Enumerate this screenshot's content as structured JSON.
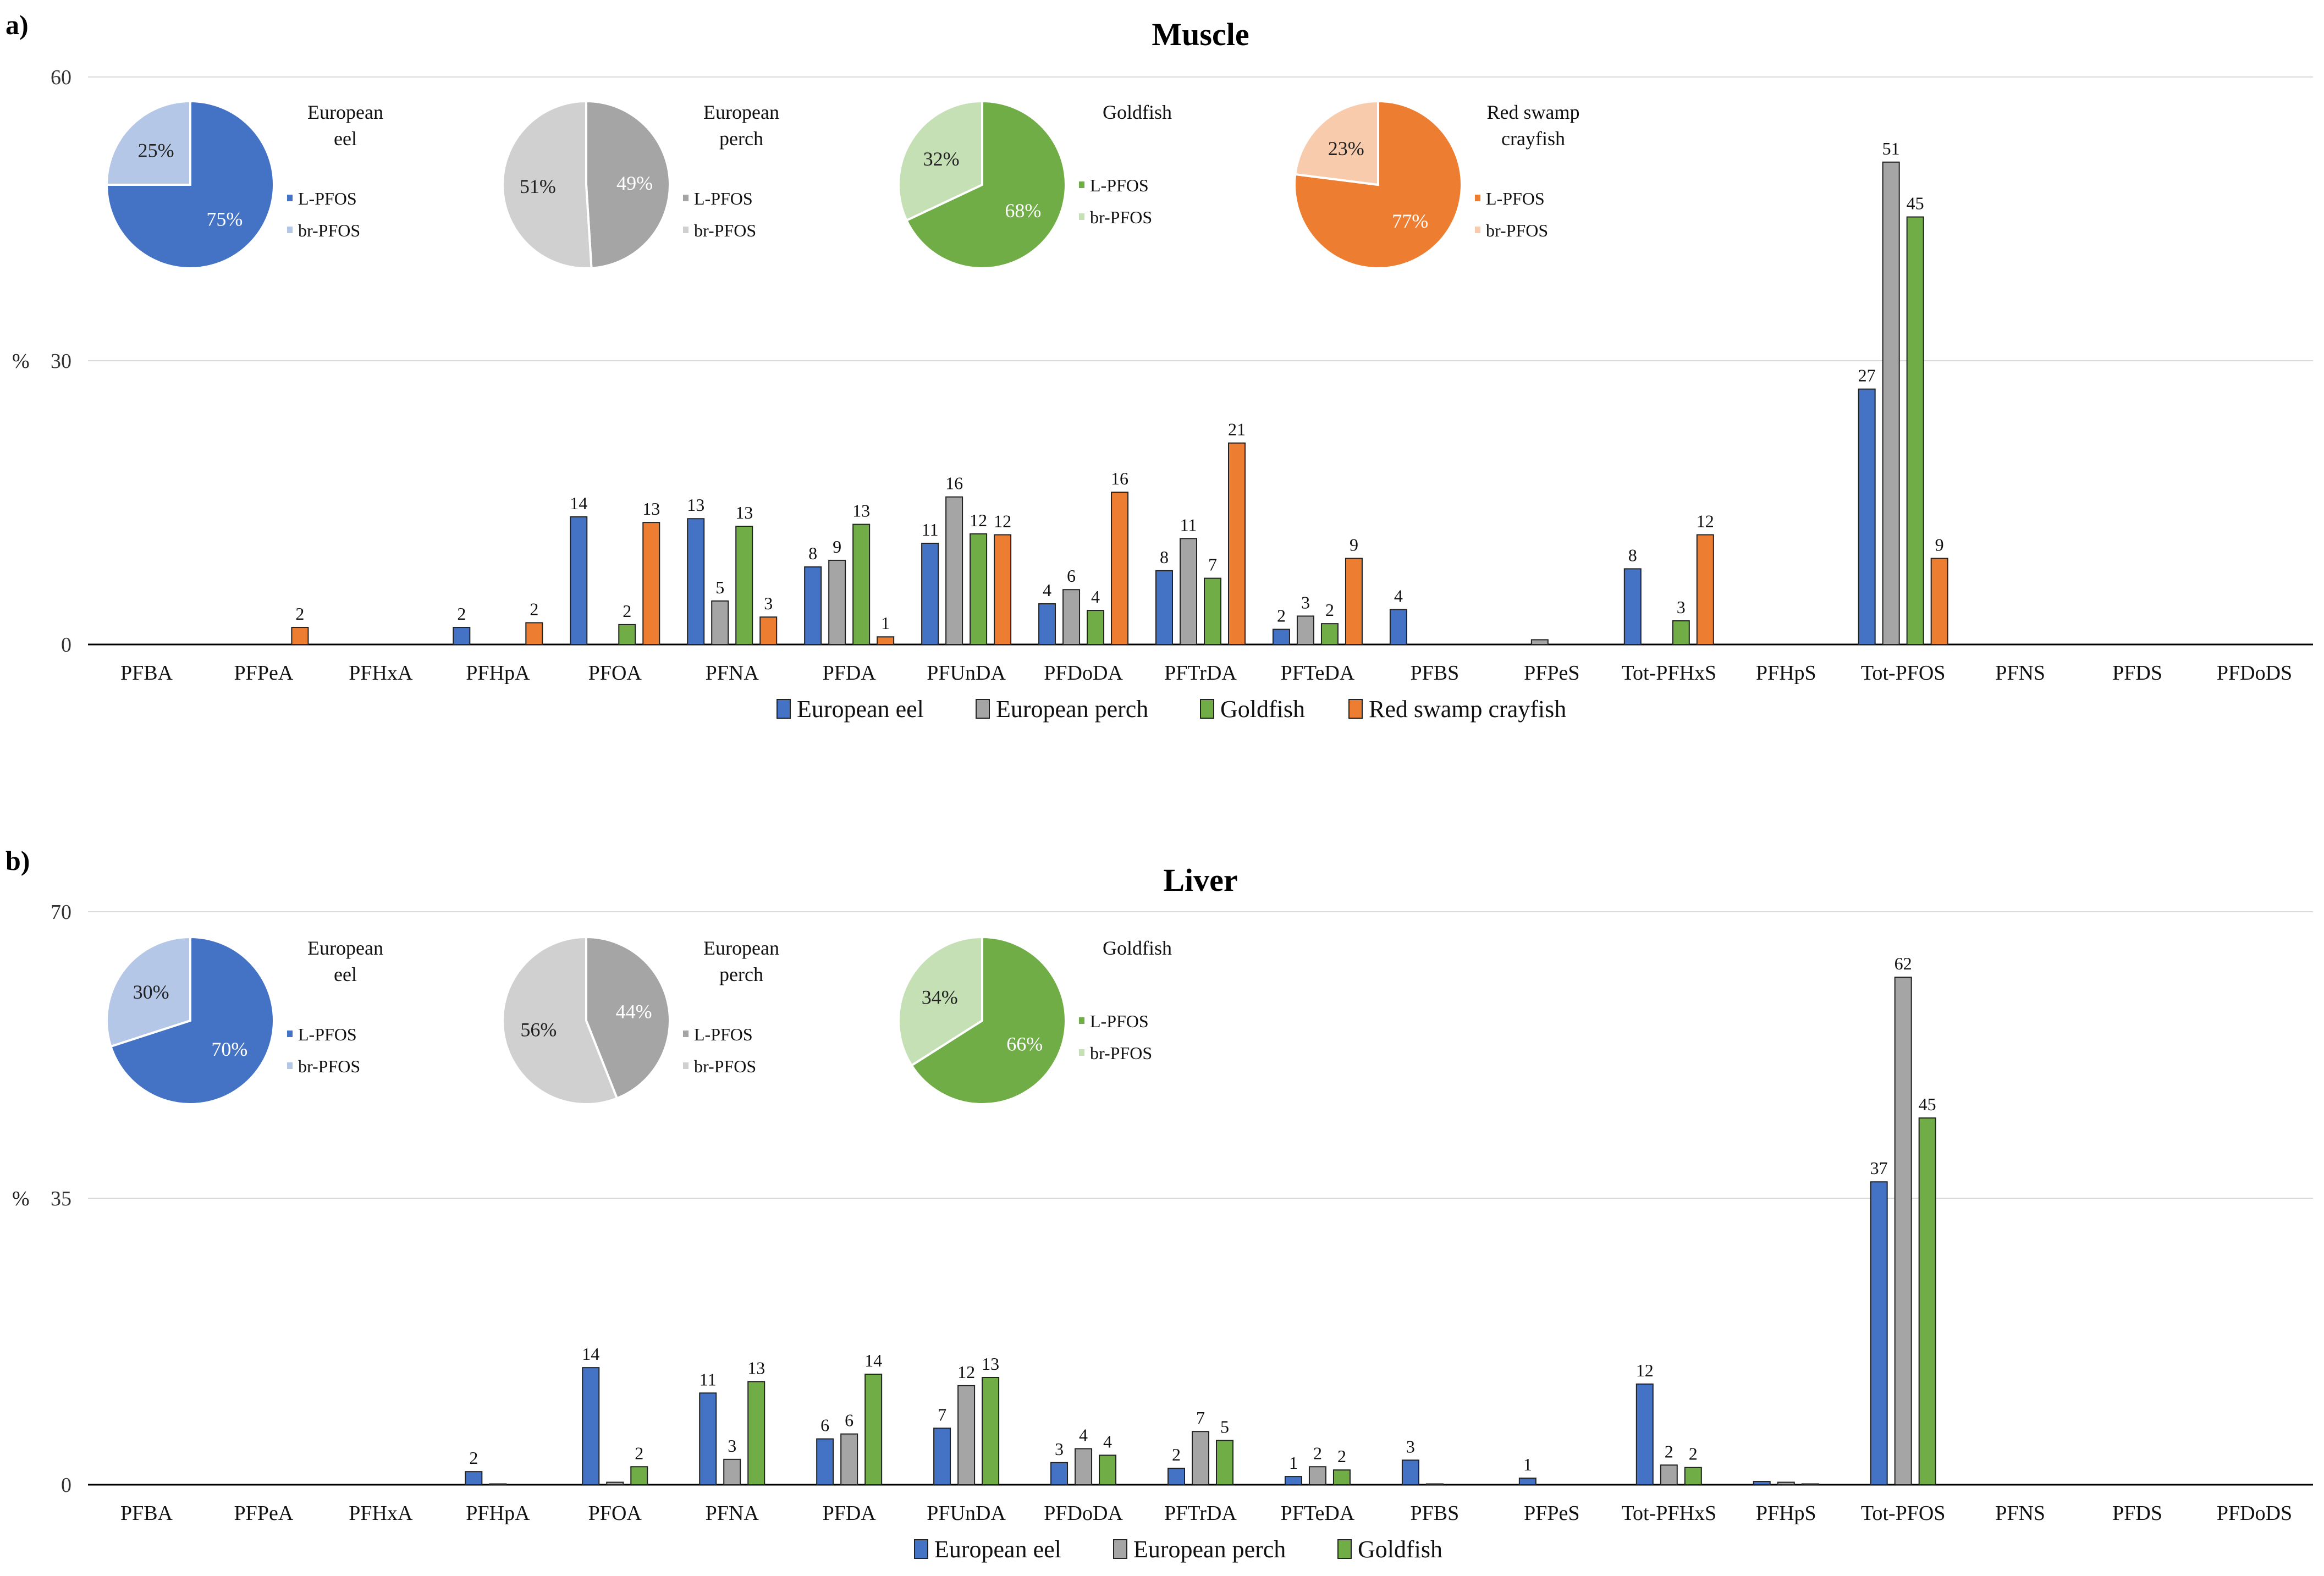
{
  "categories": [
    "PFBA",
    "PFPeA",
    "PFHxA",
    "PFHpA",
    "PFOA",
    "PFNA",
    "PFDA",
    "PFUnDA",
    "PFDoDA",
    "PFTrDA",
    "PFTeDA",
    "PFBS",
    "PFPeS",
    "Tot-PFHxS",
    "PFHpS",
    "Tot-PFOS",
    "PFNS",
    "PFDS",
    "PFDoDS"
  ],
  "pie_legend": {
    "linear": "L-PFOS",
    "branched": "br-PFOS"
  },
  "colors": {
    "European eel": "#4472C4",
    "European eel light": "#B4C7E7",
    "European perch": "#A5A5A5",
    "European perch light": "#D0D0D0",
    "Goldfish": "#70AD47",
    "Goldfish light": "#C5E0B4",
    "Red swamp crayfish": "#ED7D31",
    "Red swamp crayfish light": "#F8CBAD"
  },
  "chart_data": [
    {
      "panel": "a)",
      "type": "bar",
      "title": "Muscle",
      "ylabel": "%",
      "ylim": [
        0,
        60
      ],
      "yticks": [
        0,
        30,
        60
      ],
      "legend": [
        "European eel",
        "European perch",
        "Goldfish",
        "Red swamp crayfish"
      ],
      "series": [
        {
          "name": "European eel",
          "values": [
            0,
            0,
            0,
            1.8,
            13.5,
            13.3,
            8.2,
            10.7,
            4.3,
            7.8,
            1.6,
            3.7,
            0,
            8,
            0,
            27,
            0,
            0,
            0
          ],
          "labels": [
            null,
            null,
            null,
            "2",
            "14",
            "13",
            "8",
            "11",
            "4",
            "8",
            "2",
            "4",
            null,
            "8",
            null,
            "27",
            null,
            null,
            null
          ]
        },
        {
          "name": "European perch",
          "values": [
            0,
            0,
            0,
            0,
            0,
            4.6,
            8.9,
            15.6,
            5.8,
            11.2,
            3,
            0,
            0.5,
            0,
            0,
            51,
            0,
            0,
            0
          ],
          "labels": [
            null,
            null,
            null,
            null,
            null,
            "5",
            "9",
            "16",
            "6",
            "11",
            "3",
            null,
            null,
            null,
            null,
            "51",
            null,
            null,
            null
          ]
        },
        {
          "name": "Goldfish",
          "values": [
            0,
            0,
            0,
            0,
            2.1,
            12.5,
            12.7,
            11.7,
            3.6,
            7,
            2.2,
            0,
            0,
            2.5,
            0,
            45.2,
            0,
            0,
            0
          ],
          "labels": [
            null,
            null,
            null,
            null,
            "2",
            "13",
            "13",
            "12",
            "4",
            "7",
            "2",
            null,
            null,
            "3",
            null,
            "45",
            null,
            null,
            null
          ]
        },
        {
          "name": "Red swamp crayfish",
          "values": [
            0,
            1.8,
            0,
            2.3,
            12.9,
            2.9,
            0.8,
            11.6,
            16.1,
            21.3,
            9.1,
            0,
            0,
            11.6,
            0,
            9.1,
            0,
            0,
            0
          ],
          "labels": [
            null,
            "2",
            null,
            "2",
            "13",
            "3",
            "1",
            "12",
            "16",
            "21",
            "9",
            null,
            null,
            "12",
            null,
            "9",
            null,
            null,
            null
          ]
        }
      ],
      "pies": [
        {
          "species": "European eel",
          "title_lines": [
            "European",
            "eel"
          ],
          "linear": 75,
          "branched": 25
        },
        {
          "species": "European perch",
          "title_lines": [
            "European",
            "perch"
          ],
          "linear": 49,
          "branched": 51
        },
        {
          "species": "Goldfish",
          "title_lines": [
            "Goldfish"
          ],
          "linear": 68,
          "branched": 32
        },
        {
          "species": "Red swamp crayfish",
          "title_lines": [
            "Red swamp",
            "crayfish"
          ],
          "linear": 77,
          "branched": 23
        }
      ]
    },
    {
      "panel": "b)",
      "type": "bar",
      "title": "Liver",
      "ylabel": "%",
      "ylim": [
        0,
        70
      ],
      "yticks": [
        0,
        35,
        70
      ],
      "legend": [
        "European eel",
        "European perch",
        "Goldfish"
      ],
      "series": [
        {
          "name": "European eel",
          "values": [
            0,
            0,
            0,
            1.6,
            14.3,
            11.2,
            5.6,
            6.9,
            2.7,
            2,
            1,
            3,
            0.8,
            12.3,
            0.4,
            37,
            0,
            0,
            0
          ],
          "labels": [
            null,
            null,
            null,
            "2",
            "14",
            "11",
            "6",
            "7",
            "3",
            "2",
            "1",
            "3",
            "1",
            "12",
            null,
            "37",
            null,
            null,
            null
          ]
        },
        {
          "name": "European perch",
          "values": [
            0,
            0,
            0,
            0.1,
            0.3,
            3.1,
            6.2,
            12.1,
            4.4,
            6.5,
            2.2,
            0.1,
            0,
            2.4,
            0.3,
            62,
            0,
            0,
            0
          ],
          "labels": [
            null,
            null,
            null,
            null,
            null,
            "3",
            "6",
            "12",
            "4",
            "7",
            "2",
            null,
            null,
            "2",
            null,
            "62",
            null,
            null,
            null
          ]
        },
        {
          "name": "Goldfish",
          "values": [
            0,
            0,
            0,
            0,
            2.2,
            12.6,
            13.5,
            13.1,
            3.6,
            5.4,
            1.8,
            0,
            0,
            2.1,
            0.1,
            44.8,
            0,
            0,
            0
          ],
          "labels": [
            null,
            null,
            null,
            null,
            "2",
            "13",
            "14",
            "13",
            "4",
            "5",
            "2",
            null,
            null,
            "2",
            null,
            "45",
            null,
            null,
            null
          ]
        }
      ],
      "pies": [
        {
          "species": "European eel",
          "title_lines": [
            "European",
            "eel"
          ],
          "linear": 70,
          "branched": 30
        },
        {
          "species": "European perch",
          "title_lines": [
            "European",
            "perch"
          ],
          "linear": 44,
          "branched": 56
        },
        {
          "species": "Goldfish",
          "title_lines": [
            "Goldfish"
          ],
          "linear": 66,
          "branched": 34
        }
      ]
    }
  ]
}
